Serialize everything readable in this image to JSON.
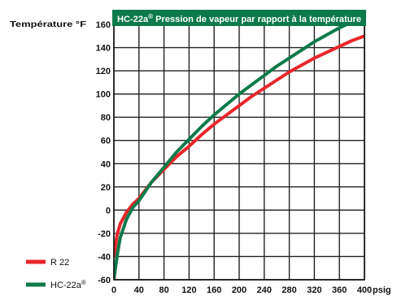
{
  "chart_data": {
    "type": "line",
    "banner": {
      "title": "HC-22a",
      "superscript": "®",
      "subtitle": "Pression de vapeur par rapport à la température"
    },
    "ylabel": "Température °F",
    "xlabel": "psig",
    "ylim": [
      -60,
      160
    ],
    "xlim": [
      0,
      400
    ],
    "yticks": [
      160,
      140,
      120,
      100,
      80,
      60,
      40,
      20,
      0,
      -20,
      -40,
      -60
    ],
    "xticks": [
      0,
      40,
      80,
      120,
      160,
      200,
      240,
      280,
      320,
      360,
      400
    ],
    "grid": true,
    "legend_placement": "bottom-left",
    "series": [
      {
        "name": "R 22",
        "color": "#e8262a",
        "x": [
          0,
          5,
          10,
          20,
          30,
          40,
          60,
          80,
          100,
          120,
          140,
          160,
          180,
          200,
          220,
          240,
          260,
          280,
          300,
          320,
          340,
          360,
          380,
          400
        ],
        "y": [
          -40,
          -22,
          -12,
          -2,
          5,
          10,
          24,
          35,
          46,
          55,
          65,
          74,
          82,
          90,
          98,
          105,
          112,
          119,
          125,
          131,
          136,
          141,
          146,
          150
        ]
      },
      {
        "name": "HC-22a",
        "name_superscript": "®",
        "color": "#0c7a4a",
        "x": [
          0,
          5,
          10,
          20,
          30,
          40,
          60,
          80,
          100,
          120,
          140,
          160,
          180,
          200,
          220,
          240,
          260,
          280,
          300,
          320,
          340,
          360,
          380,
          400
        ],
        "y": [
          -60,
          -40,
          -24,
          -8,
          2,
          8,
          24,
          37,
          50,
          61,
          72,
          82,
          91,
          100,
          108,
          116,
          124,
          131,
          138,
          145,
          151,
          157,
          162,
          165
        ]
      }
    ]
  }
}
